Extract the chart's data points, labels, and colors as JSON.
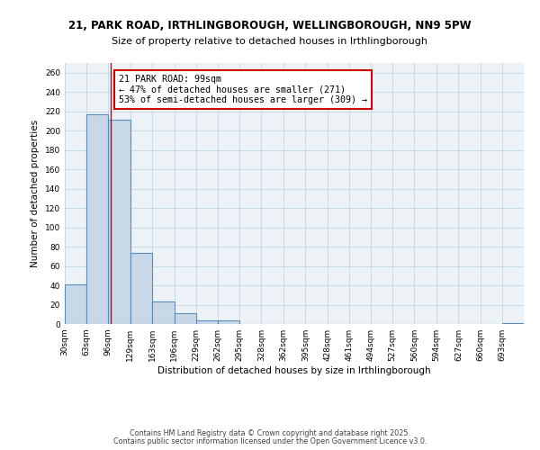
{
  "title_line1": "21, PARK ROAD, IRTHLINGBOROUGH, WELLINGBOROUGH, NN9 5PW",
  "title_line2": "Size of property relative to detached houses in Irthlingborough",
  "xlabel": "Distribution of detached houses by size in Irthlingborough",
  "ylabel": "Number of detached properties",
  "bin_labels": [
    "30sqm",
    "63sqm",
    "96sqm",
    "129sqm",
    "163sqm",
    "196sqm",
    "229sqm",
    "262sqm",
    "295sqm",
    "328sqm",
    "362sqm",
    "395sqm",
    "428sqm",
    "461sqm",
    "494sqm",
    "527sqm",
    "560sqm",
    "594sqm",
    "627sqm",
    "660sqm",
    "693sqm"
  ],
  "bin_edges": [
    30,
    63,
    96,
    129,
    163,
    196,
    229,
    262,
    295,
    328,
    362,
    395,
    428,
    461,
    494,
    527,
    560,
    594,
    627,
    660,
    693,
    726
  ],
  "bar_values": [
    41,
    217,
    211,
    74,
    23,
    11,
    4,
    4,
    0,
    0,
    0,
    0,
    0,
    0,
    0,
    0,
    0,
    0,
    0,
    0,
    1
  ],
  "bar_color": "#c8d8e8",
  "bar_edge_color": "#5b8db8",
  "bar_linewidth": 0.8,
  "property_size": 99,
  "red_line_color": "#cc0000",
  "annotation_line1": "21 PARK ROAD: 99sqm",
  "annotation_line2": "← 47% of detached houses are smaller (271)",
  "annotation_line3": "53% of semi-detached houses are larger (309) →",
  "annotation_box_color": "#ffffff",
  "annotation_box_edge_color": "#cc0000",
  "ylim": [
    0,
    270
  ],
  "yticks": [
    0,
    20,
    40,
    60,
    80,
    100,
    120,
    140,
    160,
    180,
    200,
    220,
    240,
    260
  ],
  "grid_color": "#c5d5e5",
  "background_color": "#edf2f7",
  "footer_line1": "Contains HM Land Registry data © Crown copyright and database right 2025.",
  "footer_line2": "Contains public sector information licensed under the Open Government Licence v3.0.",
  "title_fontsize": 8.5,
  "subtitle_fontsize": 8.0,
  "axis_label_fontsize": 7.5,
  "tick_fontsize": 6.5,
  "annotation_fontsize": 7.2,
  "footer_fontsize": 5.8
}
